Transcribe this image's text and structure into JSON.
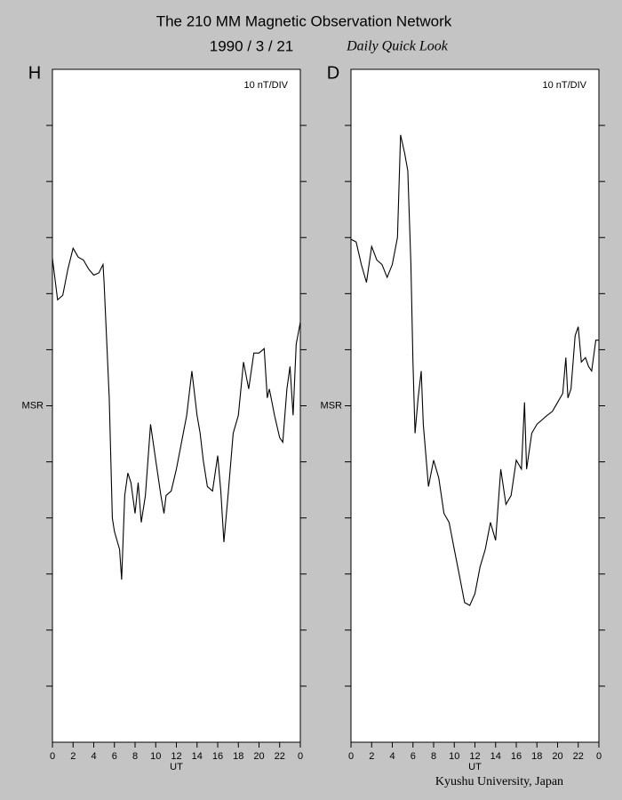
{
  "header": {
    "title": "The 210 MM Magnetic Observation Network",
    "date": "1990 / 3 / 21",
    "subtitle": "Daily Quick Look",
    "footer": "Kyushu University, Japan"
  },
  "chart_data": [
    {
      "type": "line",
      "title": "H",
      "annotation": "10 nT/DIV",
      "xlabel": "UT",
      "x": [
        0,
        0.5,
        1,
        1.5,
        2,
        2.5,
        3,
        3.5,
        4,
        4.5,
        4.9,
        5,
        5.5,
        5.8,
        6,
        6.5,
        6.7,
        7,
        7.3,
        7.6,
        8,
        8.3,
        8.6,
        9,
        9.5,
        10,
        10.5,
        10.8,
        11,
        11.5,
        12,
        12.5,
        13,
        13.5,
        14,
        14.3,
        14.6,
        15,
        15.5,
        16,
        16.3,
        16.6,
        17,
        17.5,
        18,
        18.5,
        19,
        19.5,
        20,
        20.5,
        20.8,
        21,
        21.5,
        22,
        22.3,
        22.7,
        23,
        23.3,
        23.6,
        24
      ],
      "series": [
        {
          "color": "#000000",
          "values": [
            26.3,
            18.9,
            19.7,
            24.4,
            28.1,
            26.5,
            26,
            24.4,
            23.3,
            23.7,
            25.2,
            22,
            1.4,
            -20,
            -22.4,
            -25.6,
            -31,
            -16,
            -12,
            -13.7,
            -19.2,
            -13.7,
            -20.8,
            -16,
            -3.3,
            -9.7,
            -16,
            -19.2,
            -16,
            -15.2,
            -11.3,
            -6.5,
            -1.7,
            6.2,
            -1.7,
            -4.9,
            -9.7,
            -14.4,
            -15.2,
            -8.9,
            -15.2,
            -24.3,
            -16,
            -4.9,
            -1.7,
            7.8,
            3,
            9.4,
            9.4,
            10.2,
            1.4,
            3,
            -1.7,
            -5.7,
            -6.5,
            3,
            7,
            -1.7,
            11,
            14.9
          ]
        }
      ],
      "xlim": [
        0,
        24
      ],
      "ylim": [
        -60,
        60
      ],
      "xticks": [
        0,
        2,
        4,
        6,
        8,
        10,
        12,
        14,
        16,
        18,
        20,
        22,
        {
          "value": 24,
          "label": "0"
        }
      ],
      "yticks": [
        -50,
        -40,
        -30,
        -20,
        -10,
        0,
        10,
        20,
        30,
        40,
        50
      ],
      "ylabel_ticks": [
        {
          "value": 0,
          "label": "MSR"
        }
      ]
    },
    {
      "type": "line",
      "title": "D",
      "annotation": "10 nT/DIV",
      "xlabel": "UT",
      "x": [
        0,
        0.5,
        1,
        1.5,
        2,
        2.5,
        3,
        3.5,
        4,
        4.5,
        4.8,
        5.2,
        5.5,
        5.8,
        6,
        6.2,
        6.5,
        6.8,
        7,
        7.5,
        8,
        8.5,
        9,
        9.5,
        10,
        10.5,
        11,
        11.5,
        12,
        12.5,
        13,
        13.5,
        14,
        14.5,
        15,
        15.5,
        16,
        16.5,
        16.8,
        17,
        17.5,
        18,
        18.5,
        19,
        19.5,
        20,
        20.5,
        20.8,
        21,
        21.3,
        21.7,
        22,
        22.3,
        22.7,
        23,
        23.3,
        23.7,
        24
      ],
      "series": [
        {
          "color": "#000000",
          "values": [
            29.7,
            29.2,
            25.2,
            22,
            28.4,
            26,
            25.2,
            22.9,
            25.2,
            30,
            48.3,
            45,
            41.9,
            25.2,
            7.8,
            -4.9,
            1.4,
            6.2,
            -3.3,
            -14.4,
            -9.7,
            -12.9,
            -19.2,
            -20.8,
            -25.6,
            -30.3,
            -35.1,
            -35.6,
            -33.5,
            -28.7,
            -25.6,
            -20.8,
            -24,
            -11.3,
            -17.6,
            -16,
            -9.7,
            -11.3,
            0.6,
            -11.3,
            -4.9,
            -3.3,
            -2.5,
            -1.7,
            -1,
            0.6,
            2.2,
            8.6,
            1.4,
            3,
            12.5,
            14.1,
            7.8,
            8.6,
            7,
            6.2,
            11.7,
            11.7
          ]
        }
      ],
      "xlim": [
        0,
        24
      ],
      "ylim": [
        -60,
        60
      ],
      "xticks": [
        0,
        2,
        4,
        6,
        8,
        10,
        12,
        14,
        16,
        18,
        20,
        22,
        {
          "value": 24,
          "label": "0"
        }
      ],
      "yticks": [
        -50,
        -40,
        -30,
        -20,
        -10,
        0,
        10,
        20,
        30,
        40,
        50
      ],
      "ylabel_ticks": [
        {
          "value": 0,
          "label": "MSR"
        }
      ]
    }
  ]
}
